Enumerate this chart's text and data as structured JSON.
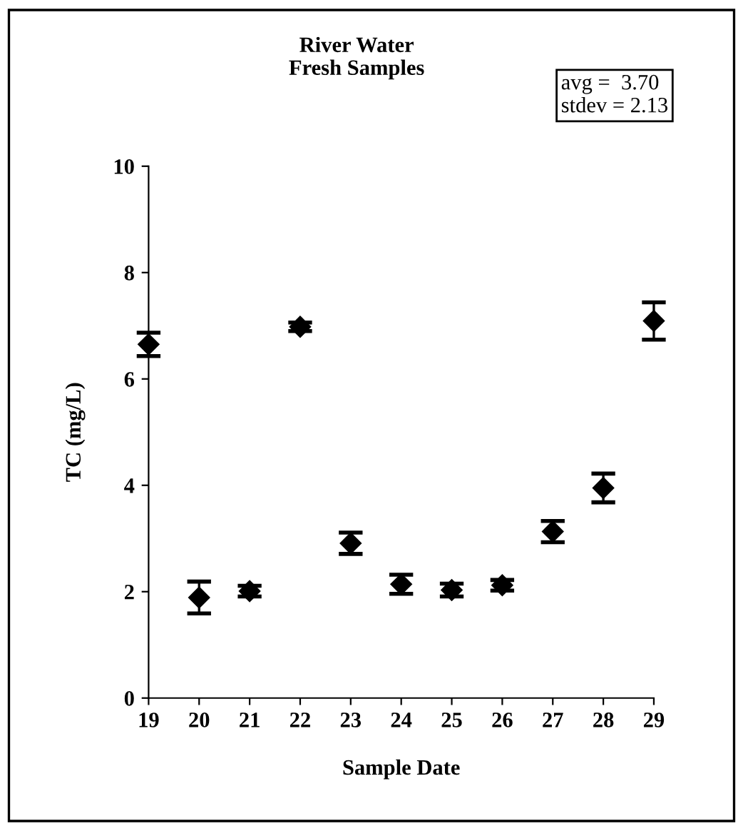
{
  "chart_data": {
    "type": "scatter",
    "title": "River Water\nFresh Samples",
    "xlabel": "Sample Date",
    "ylabel": "TC (mg/L)",
    "x": [
      19,
      20,
      21,
      22,
      23,
      24,
      25,
      26,
      27,
      28,
      29
    ],
    "values": [
      6.65,
      1.89,
      2.01,
      6.98,
      2.91,
      2.14,
      2.03,
      2.12,
      3.13,
      3.95,
      7.09
    ],
    "errors": [
      0.22,
      0.3,
      0.1,
      0.08,
      0.2,
      0.18,
      0.12,
      0.1,
      0.2,
      0.27,
      0.35
    ],
    "color": "#000000",
    "marker": "diamond",
    "xlim": [
      19,
      29
    ],
    "xticks": [
      19,
      20,
      21,
      22,
      23,
      24,
      25,
      26,
      27,
      28,
      29
    ],
    "ylim": [
      0,
      10
    ],
    "yticks": [
      0,
      2,
      4,
      6,
      8,
      10
    ],
    "grid": false,
    "legend": false,
    "annotations": [
      "avg =  3.70\nstdev = 2.13"
    ]
  }
}
